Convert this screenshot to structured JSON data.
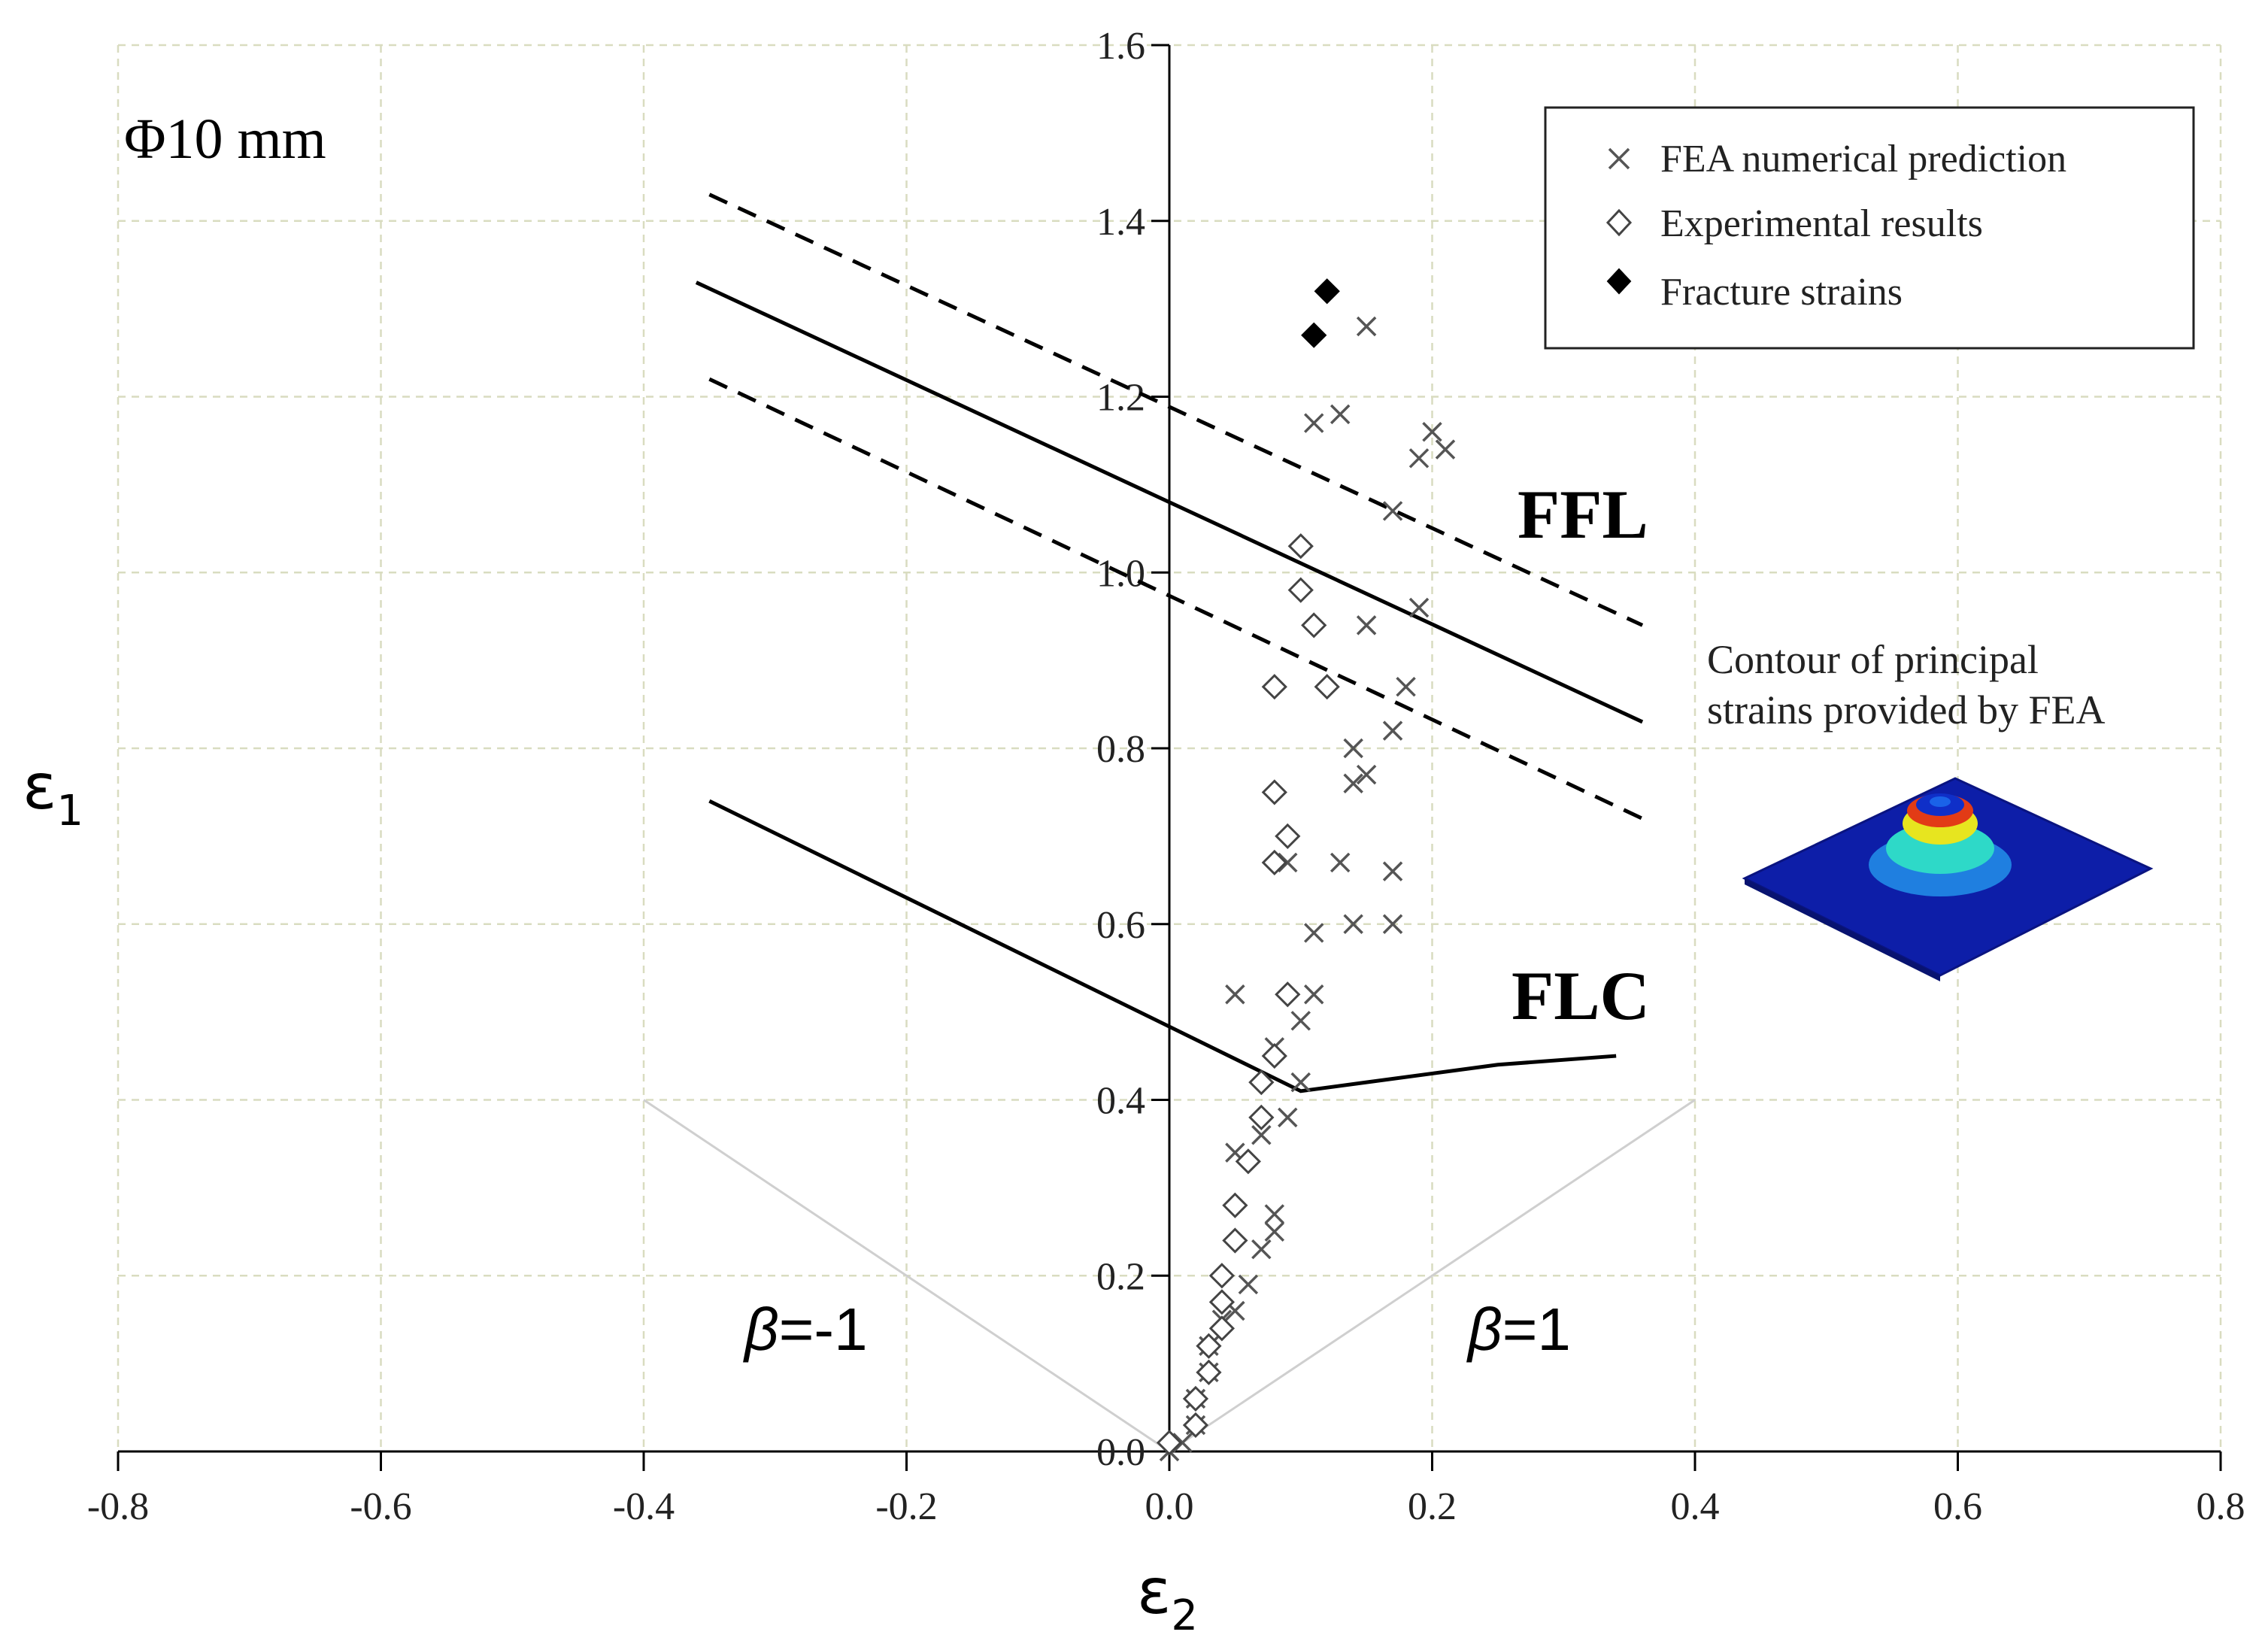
{
  "chart_data": {
    "type": "scatter",
    "title": "",
    "xlabel": "ε",
    "xlabel_sub": "2",
    "ylabel": "ε",
    "ylabel_sub": "1",
    "xlim": [
      -0.8,
      0.8
    ],
    "ylim": [
      0.0,
      1.6
    ],
    "x_ticks": [
      -0.8,
      -0.6,
      -0.4,
      -0.2,
      0.0,
      0.2,
      0.4,
      0.6,
      0.8
    ],
    "x_tick_labels": [
      "-0.8",
      "-0.6",
      "-0.4",
      "-0.2",
      "0.0",
      "0.2",
      "0.4",
      "0.6",
      "0.8"
    ],
    "y_ticks": [
      0.0,
      0.2,
      0.4,
      0.6,
      0.8,
      1.0,
      1.2,
      1.4,
      1.6
    ],
    "y_tick_labels": [
      "0.0",
      "0.2",
      "0.4",
      "0.6",
      "0.8",
      "1.0",
      "1.2",
      "1.4",
      "1.6"
    ],
    "grid": true,
    "legend_position": "top-right",
    "annotations": {
      "diameter": "Φ10 mm",
      "ffl": "FFL",
      "flc": "FLC",
      "beta_neg_symbol": "β",
      "beta_neg_value": "=-1",
      "beta_pos_symbol": "β",
      "beta_pos_value": "=1",
      "inset_line1": "Contour of principal",
      "inset_line2": "strains provided by FEA"
    },
    "series": [
      {
        "name": "FEA numerical prediction",
        "marker": "x",
        "points": [
          [
            0.0,
            0.0
          ],
          [
            0.01,
            0.01
          ],
          [
            0.02,
            0.03
          ],
          [
            0.02,
            0.06
          ],
          [
            0.03,
            0.09
          ],
          [
            0.03,
            0.12
          ],
          [
            0.04,
            0.15
          ],
          [
            0.05,
            0.16
          ],
          [
            0.06,
            0.19
          ],
          [
            0.05,
            0.34
          ],
          [
            0.07,
            0.23
          ],
          [
            0.08,
            0.25
          ],
          [
            0.08,
            0.27
          ],
          [
            0.07,
            0.36
          ],
          [
            0.09,
            0.38
          ],
          [
            0.08,
            0.46
          ],
          [
            0.1,
            0.42
          ],
          [
            0.1,
            0.49
          ],
          [
            0.05,
            0.52
          ],
          [
            0.11,
            0.52
          ],
          [
            0.11,
            0.59
          ],
          [
            0.14,
            0.6
          ],
          [
            0.17,
            0.6
          ],
          [
            0.09,
            0.67
          ],
          [
            0.13,
            0.67
          ],
          [
            0.17,
            0.66
          ],
          [
            0.14,
            0.76
          ],
          [
            0.15,
            0.77
          ],
          [
            0.14,
            0.8
          ],
          [
            0.17,
            0.82
          ],
          [
            0.18,
            0.87
          ],
          [
            0.15,
            0.94
          ],
          [
            0.19,
            0.96
          ],
          [
            0.17,
            1.07
          ],
          [
            0.19,
            1.13
          ],
          [
            0.21,
            1.14
          ],
          [
            0.2,
            1.16
          ],
          [
            0.11,
            1.17
          ],
          [
            0.13,
            1.18
          ],
          [
            0.15,
            1.28
          ]
        ]
      },
      {
        "name": "Experimental results",
        "marker": "diamond-open",
        "points": [
          [
            0.0,
            0.01
          ],
          [
            0.02,
            0.03
          ],
          [
            0.02,
            0.06
          ],
          [
            0.03,
            0.09
          ],
          [
            0.03,
            0.12
          ],
          [
            0.04,
            0.14
          ],
          [
            0.04,
            0.17
          ],
          [
            0.04,
            0.2
          ],
          [
            0.05,
            0.24
          ],
          [
            0.05,
            0.28
          ],
          [
            0.06,
            0.33
          ],
          [
            0.07,
            0.38
          ],
          [
            0.07,
            0.42
          ],
          [
            0.08,
            0.45
          ],
          [
            0.09,
            0.52
          ],
          [
            0.08,
            0.67
          ],
          [
            0.09,
            0.7
          ],
          [
            0.08,
            0.75
          ],
          [
            0.08,
            0.87
          ],
          [
            0.12,
            0.87
          ],
          [
            0.11,
            0.94
          ],
          [
            0.1,
            0.98
          ],
          [
            0.1,
            1.03
          ]
        ]
      },
      {
        "name": "Fracture strains",
        "marker": "diamond-filled",
        "points": [
          [
            0.11,
            1.27
          ],
          [
            0.12,
            1.32
          ]
        ]
      }
    ],
    "lines": [
      {
        "name": "FFL",
        "style": "solid",
        "points": [
          [
            -0.36,
            1.33
          ],
          [
            0.36,
            0.83
          ]
        ]
      },
      {
        "name": "FFL upper bound",
        "style": "dashed",
        "points": [
          [
            -0.35,
            1.43
          ],
          [
            0.36,
            0.94
          ]
        ]
      },
      {
        "name": "FFL lower bound",
        "style": "dashed",
        "points": [
          [
            -0.35,
            1.22
          ],
          [
            0.36,
            0.72
          ]
        ]
      },
      {
        "name": "FLC",
        "style": "solid",
        "points": [
          [
            -0.35,
            0.74
          ],
          [
            0.1,
            0.41
          ],
          [
            0.15,
            0.42
          ],
          [
            0.25,
            0.44
          ],
          [
            0.34,
            0.45
          ]
        ]
      },
      {
        "name": "β=-1",
        "style": "reference",
        "points": [
          [
            0.0,
            0.0
          ],
          [
            -0.4,
            0.4
          ]
        ]
      },
      {
        "name": "β=1",
        "style": "reference",
        "points": [
          [
            0.0,
            0.0
          ],
          [
            0.4,
            0.4
          ]
        ]
      }
    ]
  }
}
